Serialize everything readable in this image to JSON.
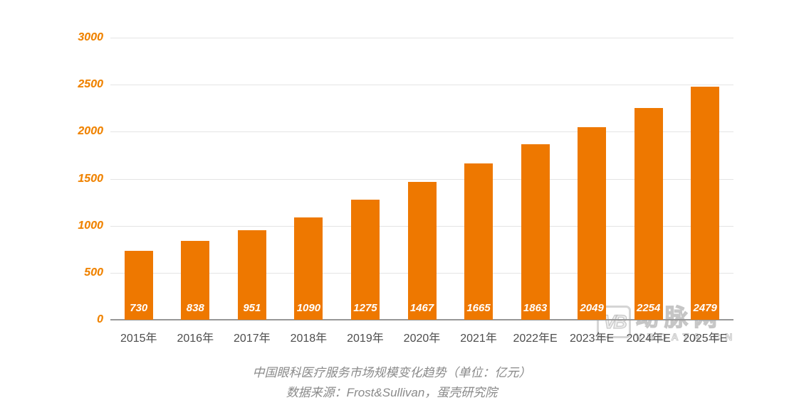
{
  "chart_data": {
    "type": "bar",
    "categories": [
      "2015年",
      "2016年",
      "2017年",
      "2018年",
      "2019年",
      "2020年",
      "2021年",
      "2022年E",
      "2023年E",
      "2024年E",
      "2025年E"
    ],
    "values": [
      730,
      838,
      951,
      1090,
      1275,
      1467,
      1665,
      1863,
      2049,
      2254,
      2479
    ],
    "title": "中国眼科医疗服务市场规模变化趋势（单位：亿元）",
    "source": "数据来源：Frost&Sullivan，蛋壳研究院",
    "xlabel": "",
    "ylabel": "",
    "ylim": [
      0,
      3000
    ],
    "yticks": [
      0,
      500,
      1000,
      1500,
      2000,
      2500,
      3000
    ],
    "grid": true,
    "legend_position": "none",
    "bar_color": "#ee7800",
    "value_label_color": "#ffffff",
    "ytick_color": "#ef8200",
    "xtick_color": "#4d4d4d",
    "gridline_color": "#e4e4e4",
    "baseline_color": "#979797",
    "caption_color": "#8a8a8a"
  },
  "watermark": {
    "logo": "VB",
    "brand": "动脉网",
    "domain": "VBDATA.CN"
  }
}
